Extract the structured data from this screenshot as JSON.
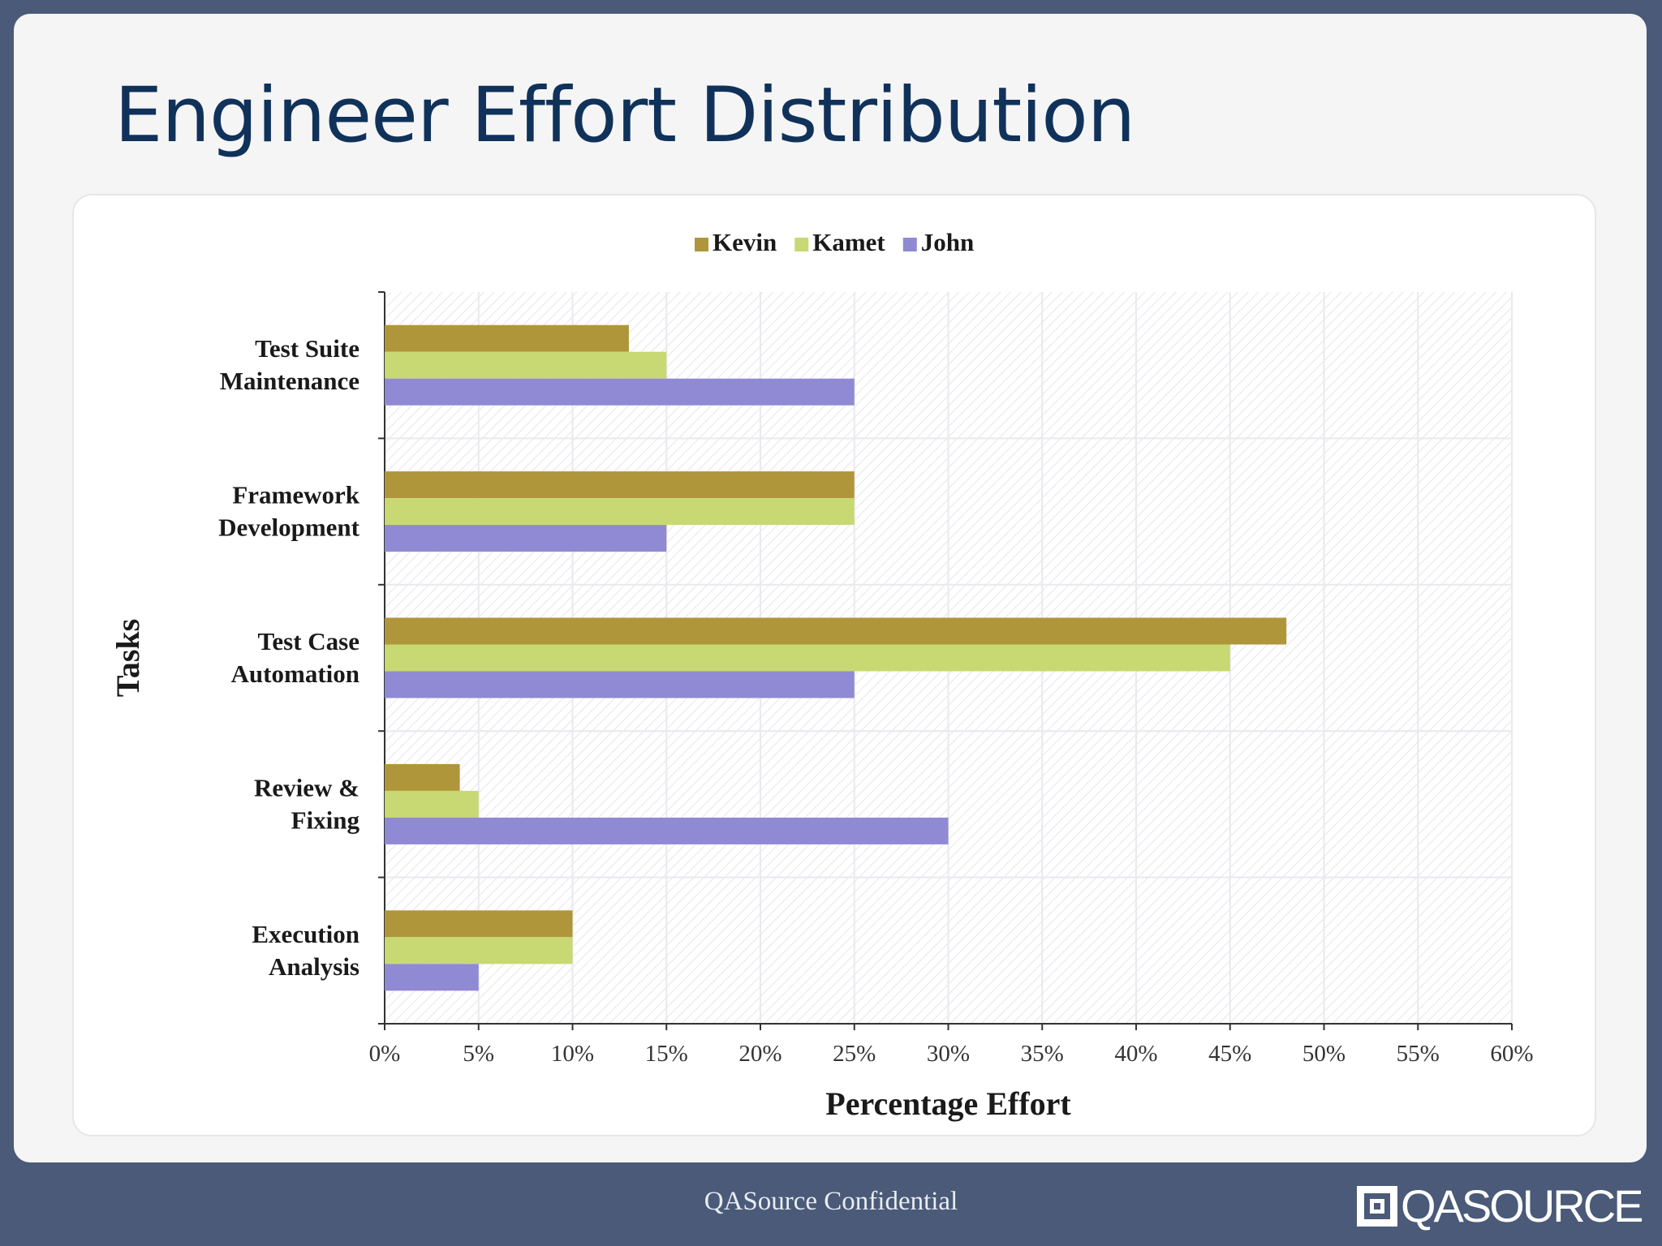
{
  "slide": {
    "title": "Engineer Effort Distribution",
    "footer": "QASource Confidential",
    "brand": "QASOURCE"
  },
  "colors": {
    "background": "#4a5a78",
    "title": "#10325a",
    "Kevin": "#b0963a",
    "Kamet": "#c8d873",
    "John": "#8f8ad3"
  },
  "chart_data": {
    "type": "bar",
    "orientation": "horizontal",
    "categories": [
      [
        "Test Suite",
        "Maintenance"
      ],
      [
        "Framework",
        "Development"
      ],
      [
        "Test Case",
        "Automation"
      ],
      [
        "Review &",
        "Fixing"
      ],
      [
        "Execution",
        "Analysis"
      ]
    ],
    "series": [
      {
        "name": "Kevin",
        "values": [
          13,
          25,
          48,
          4,
          10
        ]
      },
      {
        "name": "Kamet",
        "values": [
          15,
          25,
          45,
          5,
          10
        ]
      },
      {
        "name": "John",
        "values": [
          25,
          15,
          25,
          30,
          5
        ]
      }
    ],
    "xlabel": "Percentage Effort",
    "ylabel": "Tasks",
    "xlim": [
      0,
      60
    ],
    "xticks": [
      "0%",
      "5%",
      "10%",
      "15%",
      "20%",
      "25%",
      "30%",
      "35%",
      "40%",
      "45%",
      "50%",
      "55%",
      "60%"
    ],
    "legend": "top-center",
    "grid": true
  }
}
